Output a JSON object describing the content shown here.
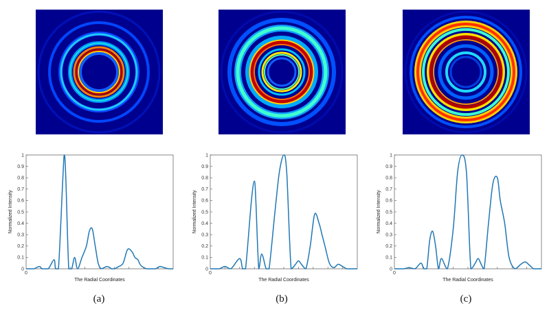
{
  "figure": {
    "panels": [
      {
        "label": "(a)"
      },
      {
        "label": "(b)"
      },
      {
        "label": "(c)"
      }
    ]
  },
  "colors": {
    "heatmap_background": "#00008f",
    "line": "#1f77b4",
    "axis": "#555555"
  },
  "chart_data": [
    {
      "type": "line",
      "panel": "(a)",
      "xlabel": "The Radial Coordinates",
      "ylabel": "Normalized Intensity",
      "ylim": [
        0,
        1
      ],
      "yticks": [
        "0",
        "0.1",
        "0.2",
        "0.3",
        "0.4",
        "0.5",
        "0.6",
        "0.7",
        "0.8",
        "0.9",
        "1"
      ],
      "xticks": [
        "0"
      ],
      "grid": false,
      "series": [
        {
          "x": [
            0,
            0.05,
            0.09,
            0.11,
            0.15,
            0.19,
            0.2,
            0.22,
            0.25,
            0.26,
            0.27,
            0.29,
            0.31,
            0.33,
            0.35,
            0.38,
            0.41,
            0.43,
            0.45,
            0.47,
            0.49,
            0.51,
            0.53,
            0.55,
            0.57,
            0.58,
            0.6,
            0.63,
            0.66,
            0.69,
            0.72,
            0.74,
            0.76,
            0.78,
            0.82,
            0.85,
            0.88,
            0.91,
            0.94,
            0.97,
            1.0
          ],
          "y": [
            0,
            0,
            0.02,
            0.0,
            0.0,
            0.08,
            0.0,
            0.0,
            0.8,
            1.0,
            0.8,
            0.0,
            0.0,
            0.1,
            0.0,
            0.1,
            0.2,
            0.33,
            0.35,
            0.2,
            0.05,
            0.0,
            0.01,
            0.02,
            0.01,
            0.0,
            0.0,
            0.02,
            0.05,
            0.17,
            0.15,
            0.1,
            0.08,
            0.03,
            0.0,
            0.0,
            0.0,
            0.02,
            0.01,
            0.0,
            0.0
          ]
        }
      ]
    },
    {
      "type": "line",
      "panel": "(b)",
      "xlabel": "The Radial Coordinates",
      "ylabel": "Normalized Intensity",
      "ylim": [
        0,
        1
      ],
      "yticks": [
        "0",
        "0.1",
        "0.2",
        "0.3",
        "0.4",
        "0.5",
        "0.6",
        "0.7",
        "0.8",
        "0.9",
        "1"
      ],
      "xticks": [
        "0"
      ],
      "grid": false,
      "series": [
        {
          "x": [
            0,
            0.06,
            0.1,
            0.14,
            0.2,
            0.22,
            0.24,
            0.28,
            0.3,
            0.31,
            0.33,
            0.35,
            0.38,
            0.4,
            0.44,
            0.47,
            0.5,
            0.52,
            0.55,
            0.58,
            0.6,
            0.62,
            0.65,
            0.68,
            0.71,
            0.74,
            0.76,
            0.78,
            0.81,
            0.84,
            0.87,
            0.9,
            0.93,
            0.96,
            1.0
          ],
          "y": [
            0,
            0,
            0.02,
            0.0,
            0.09,
            0.0,
            0.0,
            0.6,
            0.77,
            0.6,
            0.0,
            0.13,
            0.0,
            0.0,
            0.5,
            0.85,
            1.0,
            0.85,
            0.0,
            0.04,
            0.07,
            0.04,
            0.0,
            0.2,
            0.48,
            0.4,
            0.3,
            0.2,
            0.05,
            0.01,
            0.04,
            0.02,
            0.0,
            0.0,
            0.0
          ]
        }
      ]
    },
    {
      "type": "line",
      "panel": "(c)",
      "xlabel": "The Radial Coordinates",
      "ylabel": "Normalized Intensity",
      "ylim": [
        0,
        1
      ],
      "yticks": [
        "0",
        "0.1",
        "0.2",
        "0.3",
        "0.4",
        "0.5",
        "0.6",
        "0.7",
        "0.8",
        "0.9",
        "1"
      ],
      "xticks": [
        "0"
      ],
      "grid": false,
      "series": [
        {
          "x": [
            0,
            0.06,
            0.1,
            0.14,
            0.18,
            0.2,
            0.22,
            0.24,
            0.26,
            0.28,
            0.3,
            0.32,
            0.36,
            0.4,
            0.43,
            0.46,
            0.49,
            0.52,
            0.55,
            0.57,
            0.59,
            0.61,
            0.64,
            0.67,
            0.7,
            0.72,
            0.75,
            0.78,
            0.82,
            0.86,
            0.89,
            0.92,
            0.95,
            1.0
          ],
          "y": [
            0,
            0,
            0.01,
            0.0,
            0.05,
            0.0,
            0.0,
            0.25,
            0.33,
            0.2,
            0.0,
            0.09,
            0.0,
            0.35,
            0.85,
            1.0,
            0.85,
            0.0,
            0.05,
            0.09,
            0.04,
            0.0,
            0.4,
            0.75,
            0.8,
            0.6,
            0.4,
            0.1,
            0.0,
            0.04,
            0.06,
            0.03,
            0.0,
            0.0
          ]
        }
      ]
    }
  ]
}
